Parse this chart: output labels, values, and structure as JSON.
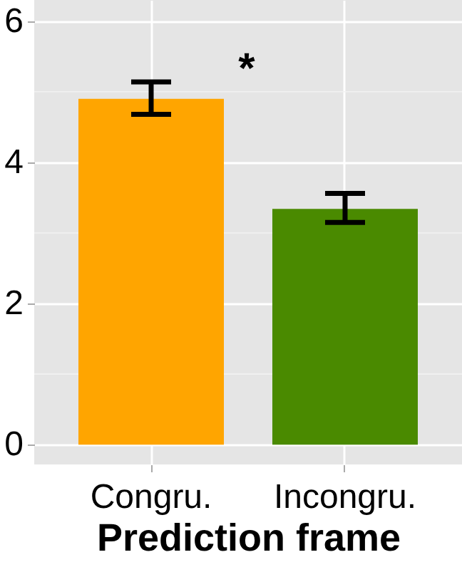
{
  "chart_data": {
    "type": "bar",
    "xlabel": "Prediction frame",
    "categories": [
      "Congru.",
      "Incongru."
    ],
    "values": [
      4.9,
      3.34
    ],
    "colors": [
      "#ffa500",
      "#4a8a00"
    ],
    "errors": [
      [
        4.68,
        5.14
      ],
      [
        3.15,
        3.56
      ]
    ],
    "ylim": [
      -0.28,
      6.3
    ],
    "yticks": [
      0,
      {
        "value": 1,
        "label": null
      },
      2,
      {
        "value": 3,
        "label": null
      },
      4,
      {
        "value": 5,
        "label": null
      },
      6
    ],
    "grid": true,
    "annotations": [
      "*"
    ]
  }
}
